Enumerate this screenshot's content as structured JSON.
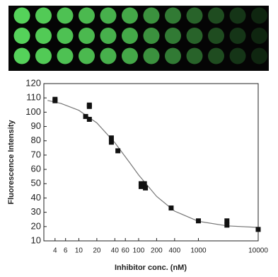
{
  "chart_data": {
    "type": "scatter",
    "x_label": "Inhibitor conc. (nM)",
    "y_label": "Fluorescence Intensity",
    "x": [
      4,
      4,
      13,
      15,
      15,
      15,
      35,
      35,
      45,
      110,
      110,
      125,
      130,
      350,
      1000,
      3000,
      3000,
      10000
    ],
    "values": [
      108,
      109,
      97,
      95,
      104,
      105,
      82,
      79,
      73,
      50,
      48,
      50,
      47,
      33,
      24,
      24,
      21,
      18
    ],
    "color": "#111111",
    "curve": {
      "x": [
        3,
        5,
        10,
        20,
        40,
        70,
        100,
        200,
        400,
        1000,
        3000,
        10000
      ],
      "values": [
        108.2,
        106.2,
        101.3,
        92.5,
        78.7,
        65,
        56.1,
        41.1,
        30.8,
        23.7,
        20.5,
        19.4
      ],
      "color": "#777777"
    },
    "xscale": "log",
    "xlim": [
      2.6,
      10000
    ],
    "ylim": [
      10,
      120
    ],
    "xticks": [
      4,
      6,
      10,
      20,
      40,
      60,
      100,
      200,
      400,
      1000,
      10000
    ],
    "yticks": [
      10,
      20,
      30,
      40,
      50,
      60,
      70,
      80,
      90,
      100,
      110,
      120
    ]
  }
}
